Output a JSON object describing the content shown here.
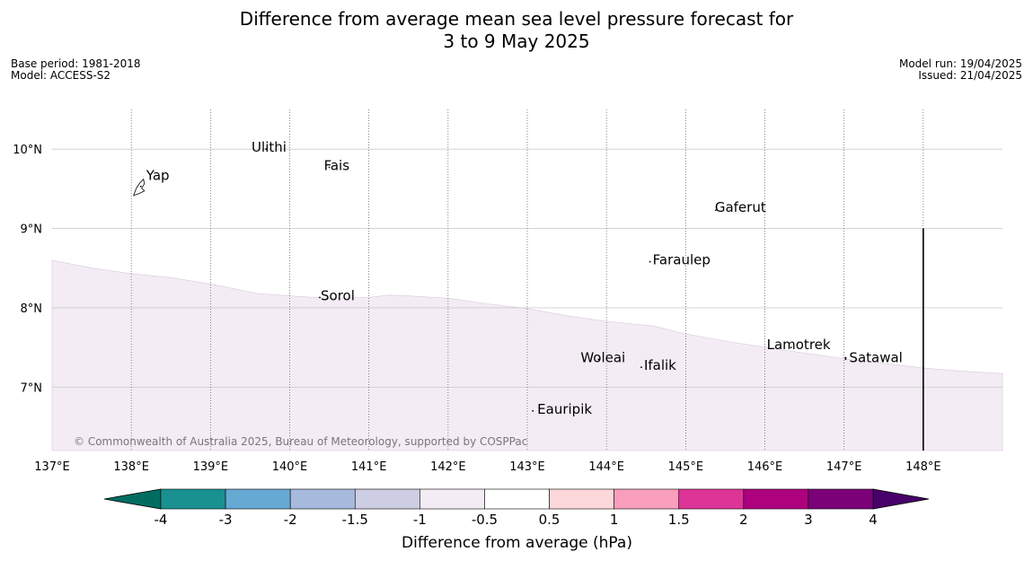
{
  "title": {
    "line1": "Difference from average mean sea level pressure forecast for",
    "line2": "3 to 9 May 2025"
  },
  "meta_left": {
    "base_period": "Base period: 1981-2018",
    "model": "Model: ACCESS-S2"
  },
  "meta_right": {
    "model_run": "Model run: 19/04/2025",
    "issued": "Issued: 21/04/2025"
  },
  "map": {
    "lon_range": [
      137,
      149
    ],
    "lat_range": [
      6.2,
      10.5
    ],
    "lon_ticks": [
      {
        "value": 137,
        "label": "137°E"
      },
      {
        "value": 138,
        "label": "138°E"
      },
      {
        "value": 139,
        "label": "139°E"
      },
      {
        "value": 140,
        "label": "140°E"
      },
      {
        "value": 141,
        "label": "141°E"
      },
      {
        "value": 142,
        "label": "142°E"
      },
      {
        "value": 143,
        "label": "143°E"
      },
      {
        "value": 144,
        "label": "144°E"
      },
      {
        "value": 145,
        "label": "145°E"
      },
      {
        "value": 146,
        "label": "146°E"
      },
      {
        "value": 147,
        "label": "147°E"
      },
      {
        "value": 148,
        "label": "148°E"
      }
    ],
    "lat_ticks": [
      {
        "value": 10,
        "label": "10°N"
      },
      {
        "value": 9,
        "label": "9°N"
      },
      {
        "value": 8,
        "label": "8°N"
      },
      {
        "value": 7,
        "label": "7°N"
      }
    ],
    "shading_boundary": [
      [
        137.0,
        8.6
      ],
      [
        137.5,
        8.5
      ],
      [
        138.0,
        8.43
      ],
      [
        138.5,
        8.38
      ],
      [
        139.0,
        8.3
      ],
      [
        139.6,
        8.18
      ],
      [
        140.0,
        8.15
      ],
      [
        140.5,
        8.12
      ],
      [
        141.0,
        8.13
      ],
      [
        141.25,
        8.16
      ],
      [
        141.5,
        8.15
      ],
      [
        142.0,
        8.12
      ],
      [
        142.5,
        8.05
      ],
      [
        143.0,
        7.99
      ],
      [
        143.5,
        7.9
      ],
      [
        144.0,
        7.83
      ],
      [
        144.6,
        7.77
      ],
      [
        145.0,
        7.67
      ],
      [
        145.5,
        7.58
      ],
      [
        146.0,
        7.5
      ],
      [
        146.5,
        7.43
      ],
      [
        147.0,
        7.36
      ],
      [
        147.5,
        7.3
      ],
      [
        148.0,
        7.24
      ],
      [
        148.5,
        7.2
      ],
      [
        149.0,
        7.17
      ]
    ],
    "shading_color": "#f4ecf5",
    "boundary_line": {
      "lon": 148.0,
      "lat_top": 9.0
    },
    "places": [
      {
        "name": "Yap",
        "lon": 138.12,
        "lat": 9.53,
        "label_dx": 6,
        "label_dy": 5
      },
      {
        "name": "Ulithi",
        "lon": 139.7,
        "lat": 10.0,
        "label_dx": -16,
        "label_dy": 15
      },
      {
        "name": "Fais",
        "lon": 140.5,
        "lat": 9.77,
        "label_dx": -6,
        "label_dy": 15
      },
      {
        "name": "Gaferut",
        "lon": 145.38,
        "lat": 9.23,
        "label_dx": -1,
        "label_dy": 14
      },
      {
        "name": "Faraulep",
        "lon": 144.55,
        "lat": 8.58,
        "label_dx": 3,
        "label_dy": 15
      },
      {
        "name": "Sorol",
        "lon": 140.38,
        "lat": 8.13,
        "label_dx": 1,
        "label_dy": 15
      },
      {
        "name": "Lamotrek",
        "lon": 146.33,
        "lat": 7.5,
        "label_dx": -27,
        "label_dy": 14
      },
      {
        "name": "Woleai",
        "lon": 143.9,
        "lat": 7.35,
        "label_dx": -20,
        "label_dy": 15
      },
      {
        "name": "Ifalik",
        "lon": 144.44,
        "lat": 7.25,
        "label_dx": 3,
        "label_dy": 15
      },
      {
        "name": "Satawal",
        "lon": 147.02,
        "lat": 7.35,
        "label_dx": 4,
        "label_dy": 15
      },
      {
        "name": "Eauripik",
        "lon": 143.07,
        "lat": 6.7,
        "label_dx": 5,
        "label_dy": 15
      }
    ],
    "copyright": "© Commonwealth of Australia 2025, Bureau of Meteorology, supported by COSPPac"
  },
  "colorbar": {
    "label": "Difference from average (hPa)",
    "boundaries": [
      -4,
      -3,
      -2,
      -1.5,
      -1,
      -0.5,
      0.5,
      1,
      1.5,
      2,
      3,
      4
    ],
    "tick_labels": [
      "-4",
      "-3",
      "-2",
      "-1.5",
      "-1",
      "-0.5",
      "0.5",
      "1",
      "1.5",
      "2",
      "3",
      "4"
    ],
    "colors": [
      "#1a9191",
      "#66a9d3",
      "#a7badd",
      "#cdcde3",
      "#f4ecf5",
      "#ffffff",
      "#fdd8db",
      "#f99ebd",
      "#dd3597",
      "#ad017e",
      "#7a0178"
    ],
    "extend_low_color": "#016d61",
    "extend_high_color": "#48006a"
  }
}
